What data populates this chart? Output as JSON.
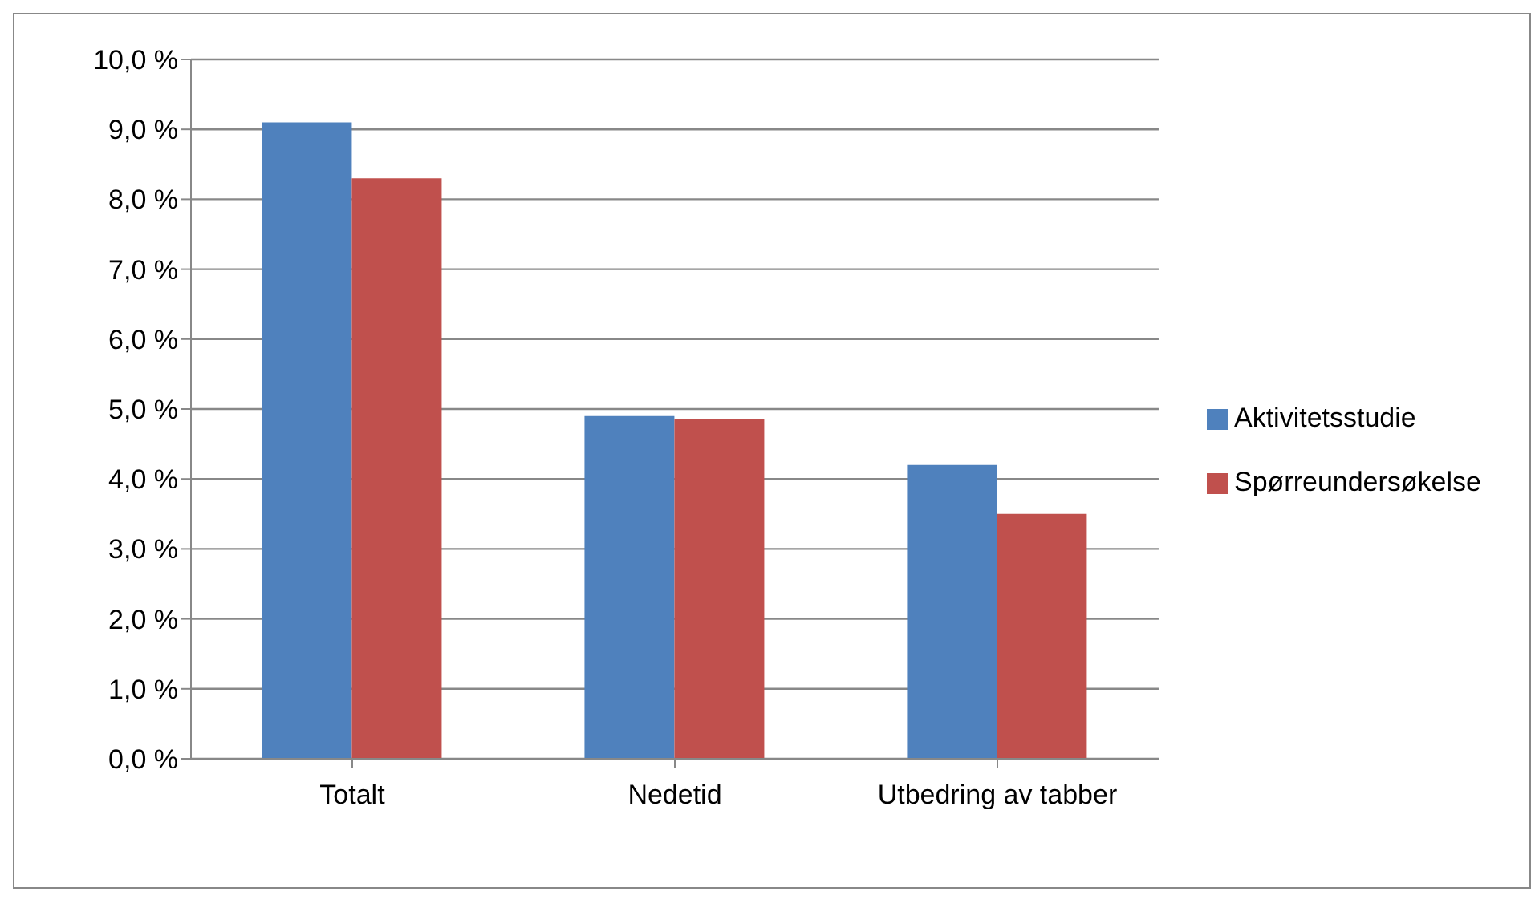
{
  "chart_data": {
    "type": "bar",
    "categories": [
      "Totalt",
      "Nedetid",
      "Utbedring av tabber"
    ],
    "series": [
      {
        "name": "Aktivitetsstudie",
        "color": "#4f81bd",
        "values": [
          9.1,
          4.9,
          4.2
        ]
      },
      {
        "name": "Spørreundersøkelse",
        "color": "#c0504d",
        "values": [
          8.3,
          4.85,
          3.5
        ]
      }
    ],
    "ylim": [
      0,
      10
    ],
    "yticks": [
      {
        "value": 0,
        "label": "0,0 %"
      },
      {
        "value": 1,
        "label": "1,0 %"
      },
      {
        "value": 2,
        "label": "2,0 %"
      },
      {
        "value": 3,
        "label": "3,0 %"
      },
      {
        "value": 4,
        "label": "4,0 %"
      },
      {
        "value": 5,
        "label": "5,0 %"
      },
      {
        "value": 6,
        "label": "6,0 %"
      },
      {
        "value": 7,
        "label": "7,0 %"
      },
      {
        "value": 8,
        "label": "8,0 %"
      },
      {
        "value": 9,
        "label": "9,0 %"
      },
      {
        "value": 10,
        "label": "10,0 %"
      }
    ],
    "grid": "y",
    "legend": "right"
  }
}
